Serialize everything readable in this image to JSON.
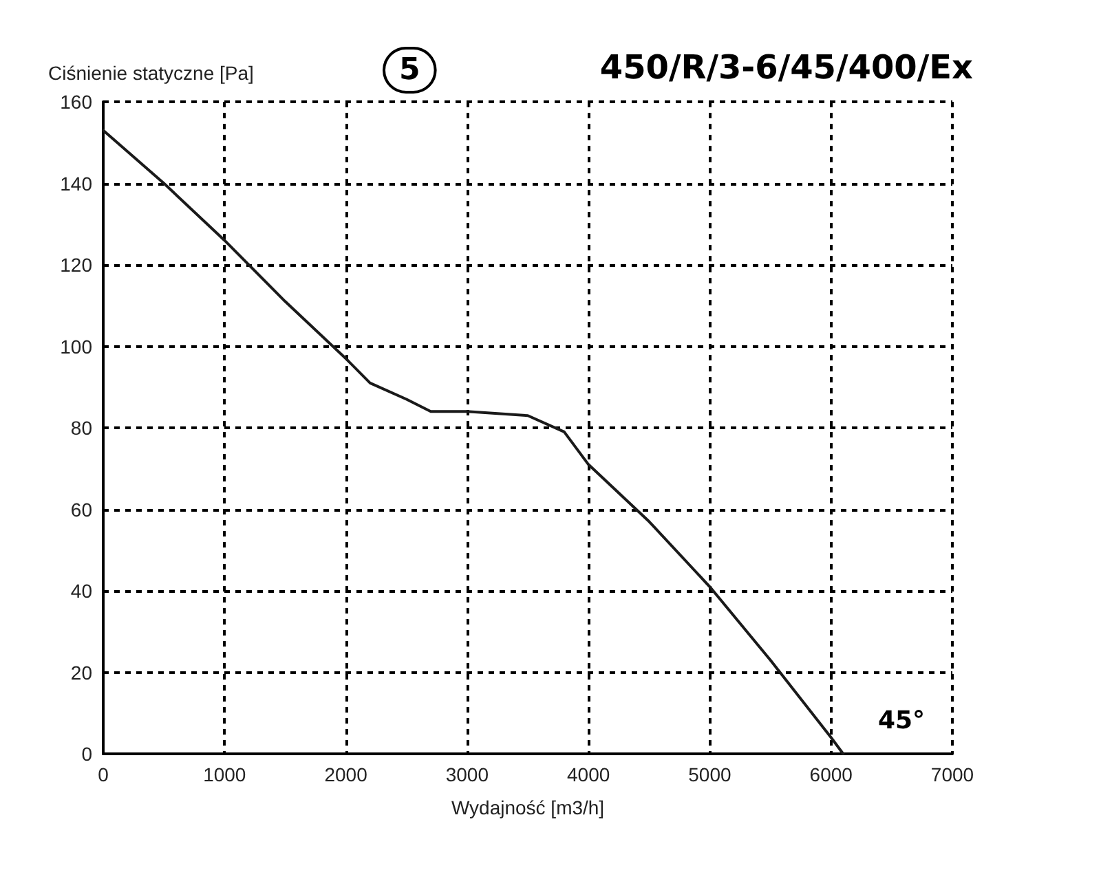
{
  "chart_data": {
    "type": "line",
    "title": "450/R/3-6/45/400/Ex",
    "ylabel": "Ciśnienie statyczne [Pa]",
    "xlabel": "Wydajność [m3/h]",
    "annotations": [
      "5",
      "45°"
    ],
    "x": [
      0,
      500,
      1000,
      1500,
      2000,
      2200,
      2500,
      2700,
      3000,
      3500,
      3800,
      4000,
      4500,
      5000,
      5500,
      6000,
      6100
    ],
    "values": [
      153,
      140,
      126,
      111,
      97,
      91,
      87,
      84,
      84,
      83,
      79,
      71,
      57,
      41,
      23,
      4,
      0
    ],
    "color": "#1a1a1a",
    "xlim": [
      0,
      7000
    ],
    "xticks": [
      0,
      1000,
      2000,
      3000,
      4000,
      5000,
      6000,
      7000
    ],
    "ylim": [
      0,
      160
    ],
    "yticks": [
      0,
      20,
      40,
      60,
      80,
      100,
      120,
      140,
      160
    ],
    "grid": true,
    "marker": "none",
    "line_style": "solid"
  }
}
